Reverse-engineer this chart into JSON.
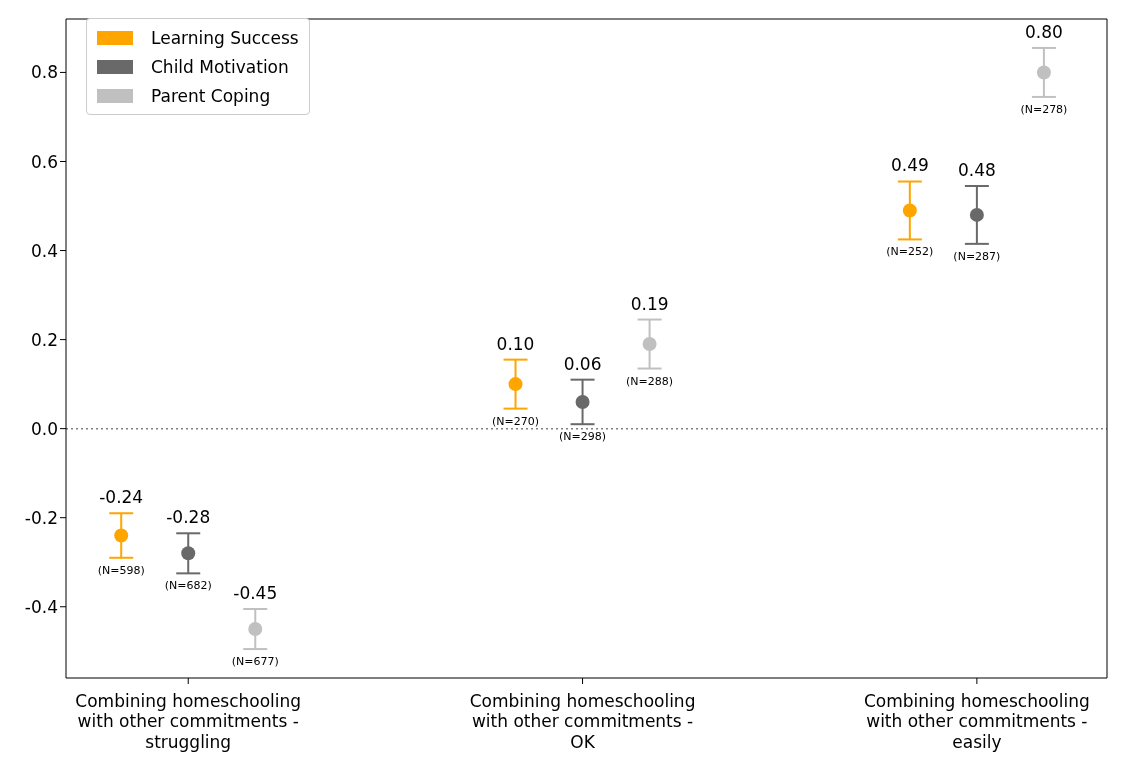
{
  "chart_data": {
    "type": "scatter",
    "categories": [
      "Combining homeschooling with other commitments - struggling",
      "Combining homeschooling with other commitments - OK",
      "Combining homeschooling with other commitments - easily"
    ],
    "series": [
      {
        "name": "Learning Success",
        "color": "#ffa500",
        "values": [
          -0.24,
          0.1,
          0.49
        ],
        "errors": [
          0.05,
          0.055,
          0.065
        ],
        "value_labels": [
          "-0.24",
          "0.10",
          "0.49"
        ]
      },
      {
        "name": "Child Motivation",
        "color": "#696969",
        "values": [
          -0.28,
          0.06,
          0.48
        ],
        "errors": [
          0.045,
          0.05,
          0.065
        ],
        "value_labels": [
          "-0.28",
          "0.06",
          "0.48"
        ]
      },
      {
        "name": "Parent Coping",
        "color": "#c0c0c0",
        "values": [
          -0.45,
          0.19,
          0.8
        ],
        "errors": [
          0.045,
          0.055,
          0.055
        ],
        "value_labels": [
          "-0.45",
          "0.19",
          "0.80"
        ]
      }
    ],
    "annotations": [
      "(N=598)",
      "(N=682)",
      "(N=677)",
      "(N=270)",
      "(N=298)",
      "(N=288)",
      "(N=252)",
      "(N=287)",
      "(N=278)"
    ],
    "ylim": [
      -0.56,
      0.92
    ],
    "yticks": [
      -0.4,
      -0.2,
      {
        "value": 0,
        "label": "0.0"
      },
      0.2,
      0.4,
      0.6,
      0.8
    ],
    "ref_lines": [
      {
        "axis": "y",
        "value": 0,
        "color": "#808080",
        "line_style": "dotted"
      }
    ],
    "marker": "circle",
    "legend": "top left",
    "grid": false
  }
}
